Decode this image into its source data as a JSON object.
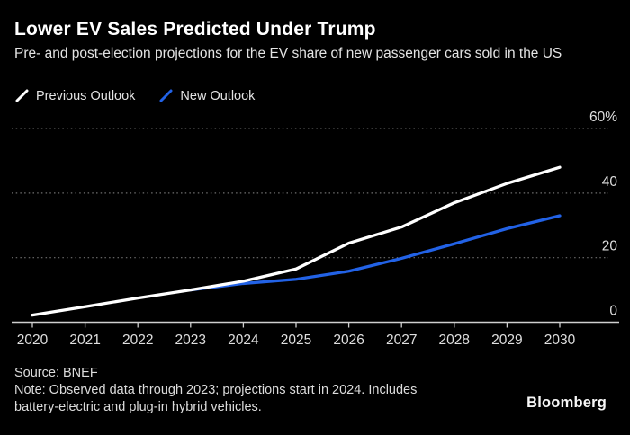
{
  "header": {
    "title": "Lower EV Sales Predicted Under Trump",
    "subtitle": "Pre- and post-election projections for the EV share of new passenger cars sold in the US"
  },
  "legend": [
    {
      "label": "Previous Outlook",
      "color": "#ffffff"
    },
    {
      "label": "New Outlook",
      "color": "#2262e6"
    }
  ],
  "chart_data": {
    "type": "line",
    "title": "Lower EV Sales Predicted Under Trump",
    "x": [
      2020,
      2021,
      2022,
      2023,
      2024,
      2025,
      2026,
      2027,
      2028,
      2029,
      2030
    ],
    "series": [
      {
        "name": "Previous Outlook",
        "color": "#ffffff",
        "values": [
          2.2,
          4.8,
          7.5,
          10,
          12.7,
          16.5,
          24.5,
          29.5,
          37,
          43,
          48
        ]
      },
      {
        "name": "New Outlook",
        "color": "#2262e6",
        "values": [
          null,
          null,
          null,
          10,
          12,
          13.3,
          15.8,
          19.8,
          24.3,
          29,
          33
        ]
      }
    ],
    "xlabel": "",
    "ylabel": "%",
    "ylim": [
      0,
      62
    ],
    "yticks": [
      {
        "value": 60,
        "label": "60%"
      },
      {
        "value": 40,
        "label": "40"
      },
      {
        "value": 20,
        "label": "20"
      },
      {
        "value": 0,
        "label": "0"
      }
    ],
    "grid": "horizontal-dotted",
    "legend_position": "top-left",
    "colors": {
      "background": "#000000",
      "axis": "#cfcfcf",
      "gridline": "#6f6f6f",
      "tick_label": "#dfdfdf"
    }
  },
  "footer": {
    "source": "Source: BNEF",
    "note": "Note: Observed data through 2023; projections start in 2024. Includes battery-electric and plug-in hybrid vehicles.",
    "brand": "Bloomberg"
  }
}
